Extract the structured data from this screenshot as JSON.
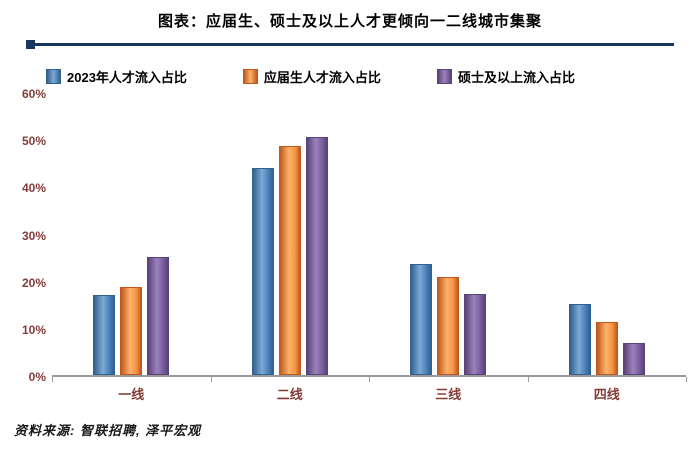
{
  "title": "图表：应届生、硕士及以上人才更倾向一二线城市集聚",
  "source": "资料来源: 智联招聘, 泽平宏观",
  "colors": {
    "rule": "#17375E",
    "axis_labels": "#843C39",
    "axis_line": "#9a9a9a"
  },
  "chart_data": {
    "type": "bar",
    "title": "图表：应届生、硕士及以上人才更倾向一二线城市集聚",
    "categories": [
      "一线",
      "二线",
      "三线",
      "四线"
    ],
    "series": [
      {
        "name": "2023年人才流入占比",
        "color": "#4E81BD",
        "edge": "#31618E",
        "light": "#7EA9D4",
        "values": [
          17.0,
          44.2,
          23.7,
          15.1
        ]
      },
      {
        "name": "应届生人才流入占比",
        "color": "#F79646",
        "edge": "#C0591B",
        "light": "#FBB26B",
        "values": [
          18.7,
          49.0,
          21.0,
          11.3
        ]
      },
      {
        "name": "硕士及以上流入占比",
        "color": "#7B5FA0",
        "edge": "#5A4379",
        "light": "#9B82BC",
        "values": [
          25.2,
          50.8,
          17.2,
          6.9
        ]
      }
    ],
    "xlabel": "",
    "ylabel": "",
    "ylim": [
      0,
      60
    ],
    "ytick_values": [
      0,
      10,
      20,
      30,
      40,
      50,
      60
    ],
    "ytick_labels": [
      "0%",
      "10%",
      "20%",
      "30%",
      "40%",
      "50%",
      "60%"
    ],
    "grid": false,
    "legend_position": "top"
  }
}
